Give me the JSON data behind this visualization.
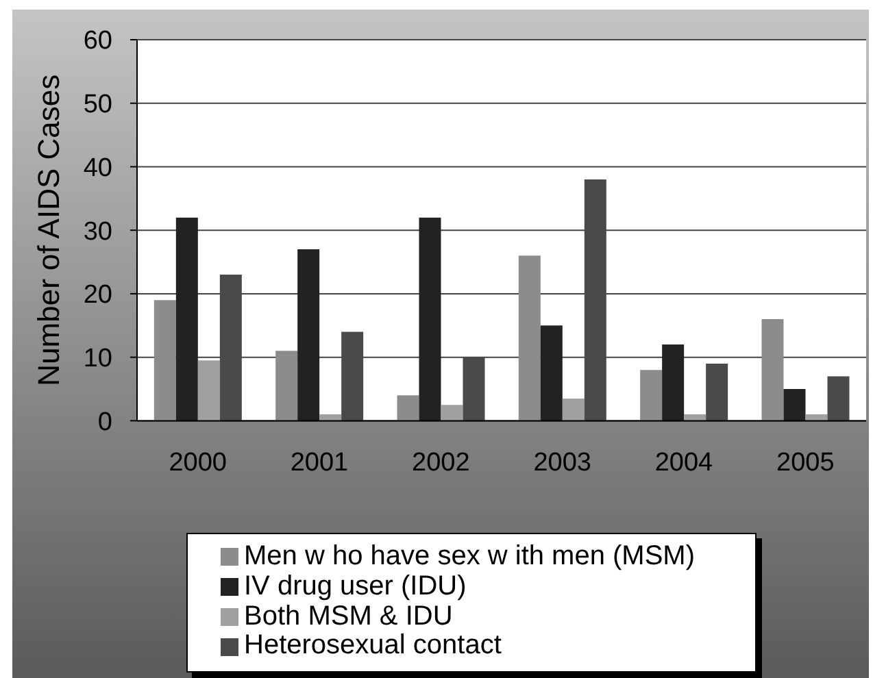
{
  "chart_data": {
    "type": "bar",
    "ylabel": "Number of AIDS Cases",
    "categories": [
      "2000",
      "2001",
      "2002",
      "2003",
      "2004",
      "2005"
    ],
    "series": [
      {
        "name": "Men w ho have sex w ith men (MSM)",
        "color": "#8c8c8c",
        "values": [
          19,
          11,
          4,
          26,
          8,
          16
        ]
      },
      {
        "name": "IV drug user (IDU)",
        "color": "#222222",
        "values": [
          32,
          27,
          32,
          15,
          12,
          5
        ]
      },
      {
        "name": "Both MSM & IDU",
        "color": "#a0a0a0",
        "values": [
          9.5,
          1,
          2.5,
          3.5,
          1,
          1
        ]
      },
      {
        "name": "Heterosexual contact",
        "color": "#4a4a4a",
        "values": [
          23,
          14,
          10,
          38,
          9,
          7
        ]
      }
    ],
    "ylim": [
      0,
      60
    ],
    "yticks": [
      0,
      10,
      20,
      30,
      40,
      50,
      60
    ],
    "grid": "y",
    "legend": "bottom"
  }
}
